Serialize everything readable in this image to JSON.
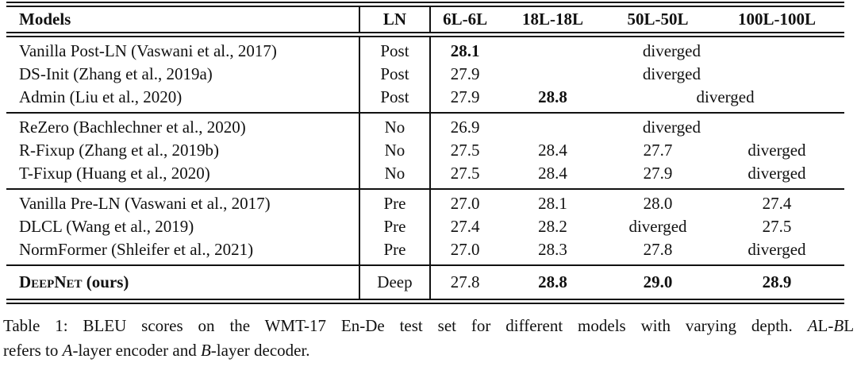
{
  "colors": {
    "ink": "#111111",
    "background": "#ffffff"
  },
  "table": {
    "columns": [
      "Models",
      "LN",
      "6L-6L",
      "18L-18L",
      "50L-50L",
      "100L-100L"
    ],
    "rows": [
      {
        "model": "Vanilla Post-LN (Vaswani et al., 2017)",
        "ln": "Post",
        "v6": "28.1",
        "merged": "diverged"
      },
      {
        "model": "DS-Init (Zhang et al., 2019a)",
        "ln": "Post",
        "v6": "27.9",
        "merged": "diverged"
      },
      {
        "model": "Admin (Liu et al., 2020)",
        "ln": "Post",
        "v6": "27.9",
        "v18": "28.8",
        "merged": "diverged"
      },
      {
        "model": "ReZero (Bachlechner et al., 2020)",
        "ln": "No",
        "v6": "26.9",
        "merged": "diverged"
      },
      {
        "model": "R-Fixup (Zhang et al., 2019b)",
        "ln": "No",
        "v6": "27.5",
        "v18": "28.4",
        "v50": "27.7",
        "v100": "diverged"
      },
      {
        "model": "T-Fixup (Huang et al., 2020)",
        "ln": "No",
        "v6": "27.5",
        "v18": "28.4",
        "v50": "27.9",
        "v100": "diverged"
      },
      {
        "model": "Vanilla Pre-LN (Vaswani et al., 2017)",
        "ln": "Pre",
        "v6": "27.0",
        "v18": "28.1",
        "v50": "28.0",
        "v100": "27.4"
      },
      {
        "model": "DLCL (Wang et al., 2019)",
        "ln": "Pre",
        "v6": "27.4",
        "v18": "28.2",
        "v50": "diverged",
        "v100": "27.5"
      },
      {
        "model": "NormFormer (Shleifer et al., 2021)",
        "ln": "Pre",
        "v6": "27.0",
        "v18": "28.3",
        "v50": "27.8",
        "v100": "diverged"
      },
      {
        "model_name": "DeepNet",
        "model_suffix": " (ours)",
        "ln": "Deep",
        "v6": "27.8",
        "v18": "28.8",
        "v50": "29.0",
        "v100": "28.9"
      }
    ]
  },
  "caption": {
    "parts": {
      "p1": "Table 1: BLEU scores on the WMT-17 En-De test set for different models with varying depth.",
      "a1": "A",
      "p2": "L-",
      "b1": "B",
      "p3": "L",
      "p4": "refers to ",
      "a2": "A",
      "p5": "-layer encoder and ",
      "b2": "B",
      "p6": "-layer decoder."
    }
  }
}
